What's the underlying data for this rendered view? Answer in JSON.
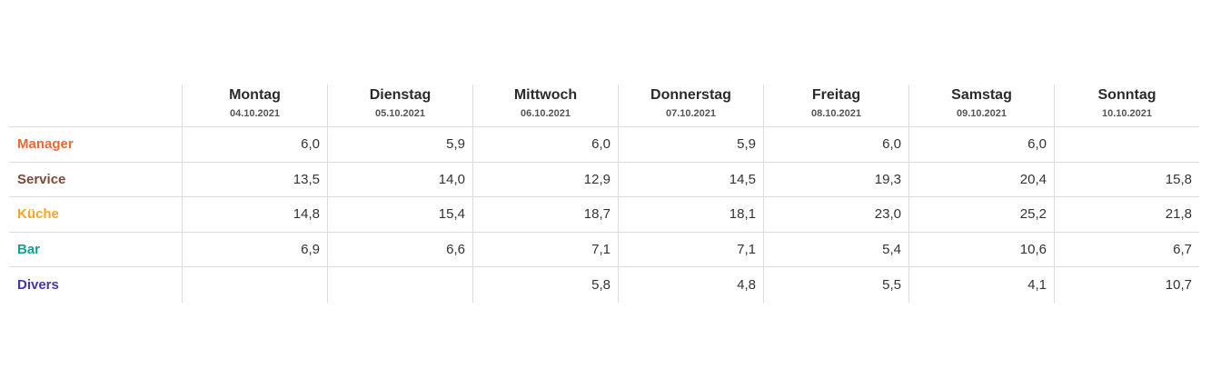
{
  "days": [
    {
      "name": "Montag",
      "date": "04.10.2021"
    },
    {
      "name": "Dienstag",
      "date": "05.10.2021"
    },
    {
      "name": "Mittwoch",
      "date": "06.10.2021"
    },
    {
      "name": "Donnerstag",
      "date": "07.10.2021"
    },
    {
      "name": "Freitag",
      "date": "08.10.2021"
    },
    {
      "name": "Samstag",
      "date": "09.10.2021"
    },
    {
      "name": "Sonntag",
      "date": "10.10.2021"
    }
  ],
  "rows": [
    {
      "label": "Manager",
      "color": "#e8683a",
      "values": [
        "6,0",
        "5,9",
        "6,0",
        "5,9",
        "6,0",
        "6,0",
        ""
      ]
    },
    {
      "label": "Service",
      "color": "#7a4a3a",
      "values": [
        "13,5",
        "14,0",
        "12,9",
        "14,5",
        "19,3",
        "20,4",
        "15,8"
      ]
    },
    {
      "label": "Küche",
      "color": "#f5a623",
      "values": [
        "14,8",
        "15,4",
        "18,7",
        "18,1",
        "23,0",
        "25,2",
        "21,8"
      ]
    },
    {
      "label": "Bar",
      "color": "#1a9e8f",
      "values": [
        "6,9",
        "6,6",
        "7,1",
        "7,1",
        "5,4",
        "10,6",
        "6,7"
      ]
    },
    {
      "label": "Divers",
      "color": "#4a35a8",
      "values": [
        "",
        "",
        "5,8",
        "4,8",
        "5,5",
        "4,1",
        "10,7"
      ]
    }
  ]
}
